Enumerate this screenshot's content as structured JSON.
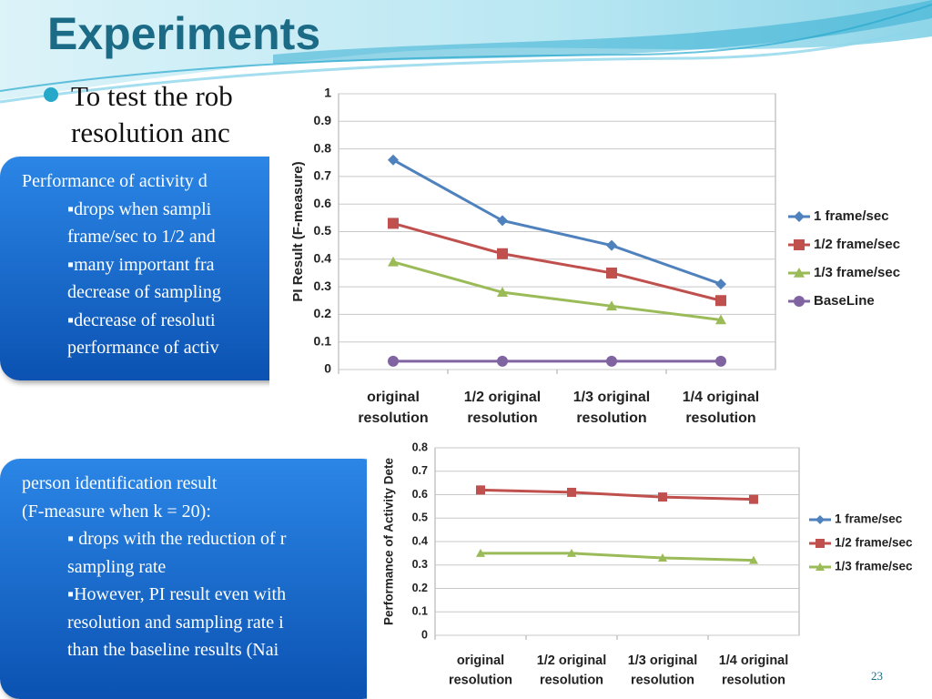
{
  "title": "Experiments",
  "bullet": [
    "To test the rob",
    "resolution anc"
  ],
  "box1": [
    "Performance of activity d",
    "▪drops when sampli",
    "frame/sec to 1/2 and",
    "▪many important fra",
    "decrease of sampling",
    "▪decrease of resoluti",
    "performance of activ"
  ],
  "box2": [
    "person identification result",
    "(F-measure when k = 20):",
    "▪ drops with the reduction of r",
    "sampling rate",
    "▪However, PI result  even with",
    "resolution and sampling rate i",
    "than the baseline results  (Nai"
  ],
  "page_number": "23",
  "chart_data": [
    {
      "type": "line",
      "ylabel": "PI Result (F-measure)",
      "categories": [
        [
          "original",
          "resolution"
        ],
        [
          "1/2 original",
          "resolution"
        ],
        [
          "1/3 original",
          "resolution"
        ],
        [
          "1/4 original",
          "resolution"
        ]
      ],
      "series": [
        {
          "name": "1 frame/sec",
          "color": "#4f81bd",
          "marker": "diamond",
          "values": [
            0.76,
            0.54,
            0.45,
            0.31
          ]
        },
        {
          "name": "1/2 frame/sec",
          "color": "#c0504d",
          "marker": "square",
          "values": [
            0.53,
            0.42,
            0.35,
            0.25
          ]
        },
        {
          "name": "1/3 frame/sec",
          "color": "#9bbb59",
          "marker": "triangle",
          "values": [
            0.39,
            0.28,
            0.23,
            0.18
          ]
        },
        {
          "name": "BaseLine",
          "color": "#8064a2",
          "marker": "circle",
          "values": [
            0.03,
            0.03,
            0.03,
            0.03
          ]
        }
      ],
      "ylim": [
        0,
        1
      ],
      "yticks": [
        0,
        0.1,
        0.2,
        0.3,
        0.4,
        0.5,
        0.6,
        0.7,
        0.8,
        0.9,
        1
      ],
      "grid": true,
      "legend": "right"
    },
    {
      "type": "line",
      "ylabel": "Performance of  Activity Dete",
      "categories": [
        [
          "original",
          "resolution"
        ],
        [
          "1/2 original",
          "resolution"
        ],
        [
          "1/3 original",
          "resolution"
        ],
        [
          "1/4 original",
          "resolution"
        ]
      ],
      "series": [
        {
          "name": "1 frame/sec",
          "color": "#4f81bd",
          "marker": "diamond",
          "values": [
            null,
            null,
            null,
            null
          ]
        },
        {
          "name": "1/2 frame/sec",
          "color": "#c0504d",
          "marker": "square",
          "values": [
            0.62,
            0.61,
            0.59,
            0.58
          ]
        },
        {
          "name": "1/3 frame/sec",
          "color": "#9bbb59",
          "marker": "triangle",
          "values": [
            0.35,
            0.35,
            0.33,
            0.32
          ]
        }
      ],
      "ylim": [
        0,
        0.8
      ],
      "yticks": [
        0,
        0.1,
        0.2,
        0.3,
        0.4,
        0.5,
        0.6,
        0.7,
        0.8
      ],
      "grid": true,
      "legend": "right"
    }
  ]
}
